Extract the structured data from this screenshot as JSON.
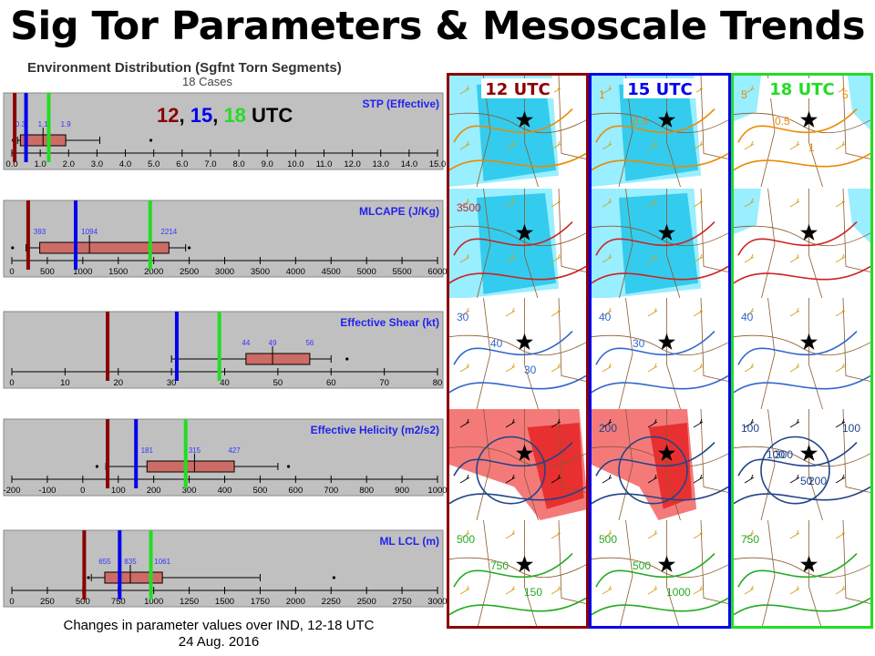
{
  "title": "Sig Tor Parameters & Mesoscale Trends",
  "environment": {
    "title": "Environment Distribution (Sgfnt Torn Segments)",
    "subtitle": "18 Cases",
    "legend_parts": [
      {
        "text": "12",
        "color": "#8b0000"
      },
      {
        "text": ", ",
        "color": "#000000"
      },
      {
        "text": "15",
        "color": "#0000ee"
      },
      {
        "text": ", ",
        "color": "#000000"
      },
      {
        "text": "18",
        "color": "#22dd22"
      },
      {
        "text": " UTC",
        "color": "#000000"
      }
    ]
  },
  "colors": {
    "utc12": "#8b0000",
    "utc15": "#0000ee",
    "utc18": "#22dd22",
    "box": "#cd6b66",
    "panel_bg": "#c0c0c0",
    "value_label": "#3333ff"
  },
  "chart_data": [
    {
      "type": "box",
      "title": "STP (Effective)",
      "xlim": [
        0,
        15
      ],
      "ticks": [
        "0.0",
        "1.0",
        "2.0",
        "3.0",
        "4.0",
        "5.0",
        "6.0",
        "7.0",
        "8.0",
        "9.0",
        "10.0",
        "11.0",
        "12.0",
        "13.0",
        "14.0",
        "15.0"
      ],
      "tick_values": [
        0,
        1,
        2,
        3,
        4,
        5,
        6,
        7,
        8,
        9,
        10,
        11,
        12,
        13,
        14,
        15
      ],
      "whisker_low": 0.2,
      "q1": 0.3,
      "median": 1.1,
      "q3": 1.9,
      "whisker_high": 3.1,
      "outliers": [
        0.05,
        4.9
      ],
      "value_labels": [
        {
          "text": "0.3",
          "x": 0.3
        },
        {
          "text": "1.1",
          "x": 1.1
        },
        {
          "text": "1.9",
          "x": 1.9
        }
      ],
      "utc_lines": {
        "12": 0.1,
        "15": 0.5,
        "18": 1.3
      }
    },
    {
      "type": "box",
      "title": "MLCAPE (J/Kg)",
      "xlim": [
        0,
        6000
      ],
      "ticks": [
        "0",
        "500",
        "1000",
        "1500",
        "2000",
        "2500",
        "3000",
        "3500",
        "4000",
        "4500",
        "5000",
        "5500",
        "6000"
      ],
      "tick_values": [
        0,
        500,
        1000,
        1500,
        2000,
        2500,
        3000,
        3500,
        4000,
        4500,
        5000,
        5500,
        6000
      ],
      "whisker_low": 200,
      "q1": 393,
      "median": 1094,
      "q3": 2214,
      "whisker_high": 2450,
      "outliers": [
        10,
        2500
      ],
      "value_labels": [
        {
          "text": "393",
          "x": 393
        },
        {
          "text": "1094",
          "x": 1094
        },
        {
          "text": "2214",
          "x": 2214
        }
      ],
      "utc_lines": {
        "12": 230,
        "15": 900,
        "18": 1950
      }
    },
    {
      "type": "box",
      "title": "Effective Shear (kt)",
      "xlim": [
        0,
        80
      ],
      "ticks": [
        "0",
        "10",
        "20",
        "30",
        "40",
        "50",
        "60",
        "70",
        "80"
      ],
      "tick_values": [
        0,
        10,
        20,
        30,
        40,
        50,
        60,
        70,
        80
      ],
      "whisker_low": 30,
      "q1": 44,
      "median": 49,
      "q3": 56,
      "whisker_high": 60,
      "outliers": [
        63
      ],
      "value_labels": [
        {
          "text": "44",
          "x": 44
        },
        {
          "text": "49",
          "x": 49
        },
        {
          "text": "56",
          "x": 56
        }
      ],
      "utc_lines": {
        "12": 18,
        "15": 31,
        "18": 39
      }
    },
    {
      "type": "box",
      "title": "Effective Helicity (m2/s2)",
      "xlim": [
        -200,
        1000
      ],
      "ticks": [
        "-200",
        "-100",
        "0",
        "100",
        "200",
        "300",
        "400",
        "500",
        "600",
        "700",
        "800",
        "900",
        "1000"
      ],
      "tick_values": [
        -200,
        -100,
        0,
        100,
        200,
        300,
        400,
        500,
        600,
        700,
        800,
        900,
        1000
      ],
      "whisker_low": 65,
      "q1": 181,
      "median": 315,
      "q3": 427,
      "whisker_high": 550,
      "outliers": [
        40,
        580
      ],
      "value_labels": [
        {
          "text": "181",
          "x": 181
        },
        {
          "text": "315",
          "x": 315
        },
        {
          "text": "427",
          "x": 427
        }
      ],
      "utc_lines": {
        "12": 70,
        "15": 150,
        "18": 290
      }
    },
    {
      "type": "box",
      "title": "ML LCL (m)",
      "xlim": [
        0,
        3000
      ],
      "ticks": [
        "0",
        "250",
        "500",
        "750",
        "1000",
        "1250",
        "1500",
        "1750",
        "2000",
        "2250",
        "2500",
        "2750",
        "3000"
      ],
      "tick_values": [
        0,
        250,
        500,
        750,
        1000,
        1250,
        1500,
        1750,
        2000,
        2250,
        2500,
        2750,
        3000
      ],
      "whisker_low": 560,
      "q1": 655,
      "median": 835,
      "q3": 1061,
      "whisker_high": 1750,
      "outliers": [
        540,
        2270
      ],
      "value_labels": [
        {
          "text": "655",
          "x": 655
        },
        {
          "text": "835",
          "x": 835
        },
        {
          "text": "1061",
          "x": 1061
        }
      ],
      "utc_lines": {
        "12": 510,
        "15": 760,
        "18": 980
      }
    }
  ],
  "maps": {
    "columns": [
      {
        "label": "12 UTC",
        "color": "#8b0000"
      },
      {
        "label": "15 UTC",
        "color": "#0000ee"
      },
      {
        "label": "18 UTC",
        "color": "#22dd22"
      }
    ],
    "rows": [
      {
        "labels": [
          [
            "",
            ""
          ],
          [
            "1",
            "0.5"
          ],
          [
            "5",
            "0.5",
            "1",
            "5"
          ]
        ]
      },
      {
        "labels": [
          [
            "3500"
          ],
          [
            ""
          ],
          [
            ""
          ]
        ]
      },
      {
        "labels": [
          [
            "30",
            "40",
            "30"
          ],
          [
            "40",
            "30"
          ],
          [
            "40"
          ]
        ]
      },
      {
        "labels": [
          [
            ""
          ],
          [
            "200"
          ],
          [
            "100",
            "300",
            "200",
            "100",
            "100",
            "50"
          ]
        ]
      },
      {
        "labels": [
          [
            "500",
            "750",
            "150"
          ],
          [
            "500",
            "500",
            "1000"
          ],
          [
            "750"
          ]
        ]
      }
    ]
  },
  "caption": {
    "line1": "Changes in parameter values over IND, 12-18 UTC",
    "line2": "24 Aug. 2016"
  }
}
